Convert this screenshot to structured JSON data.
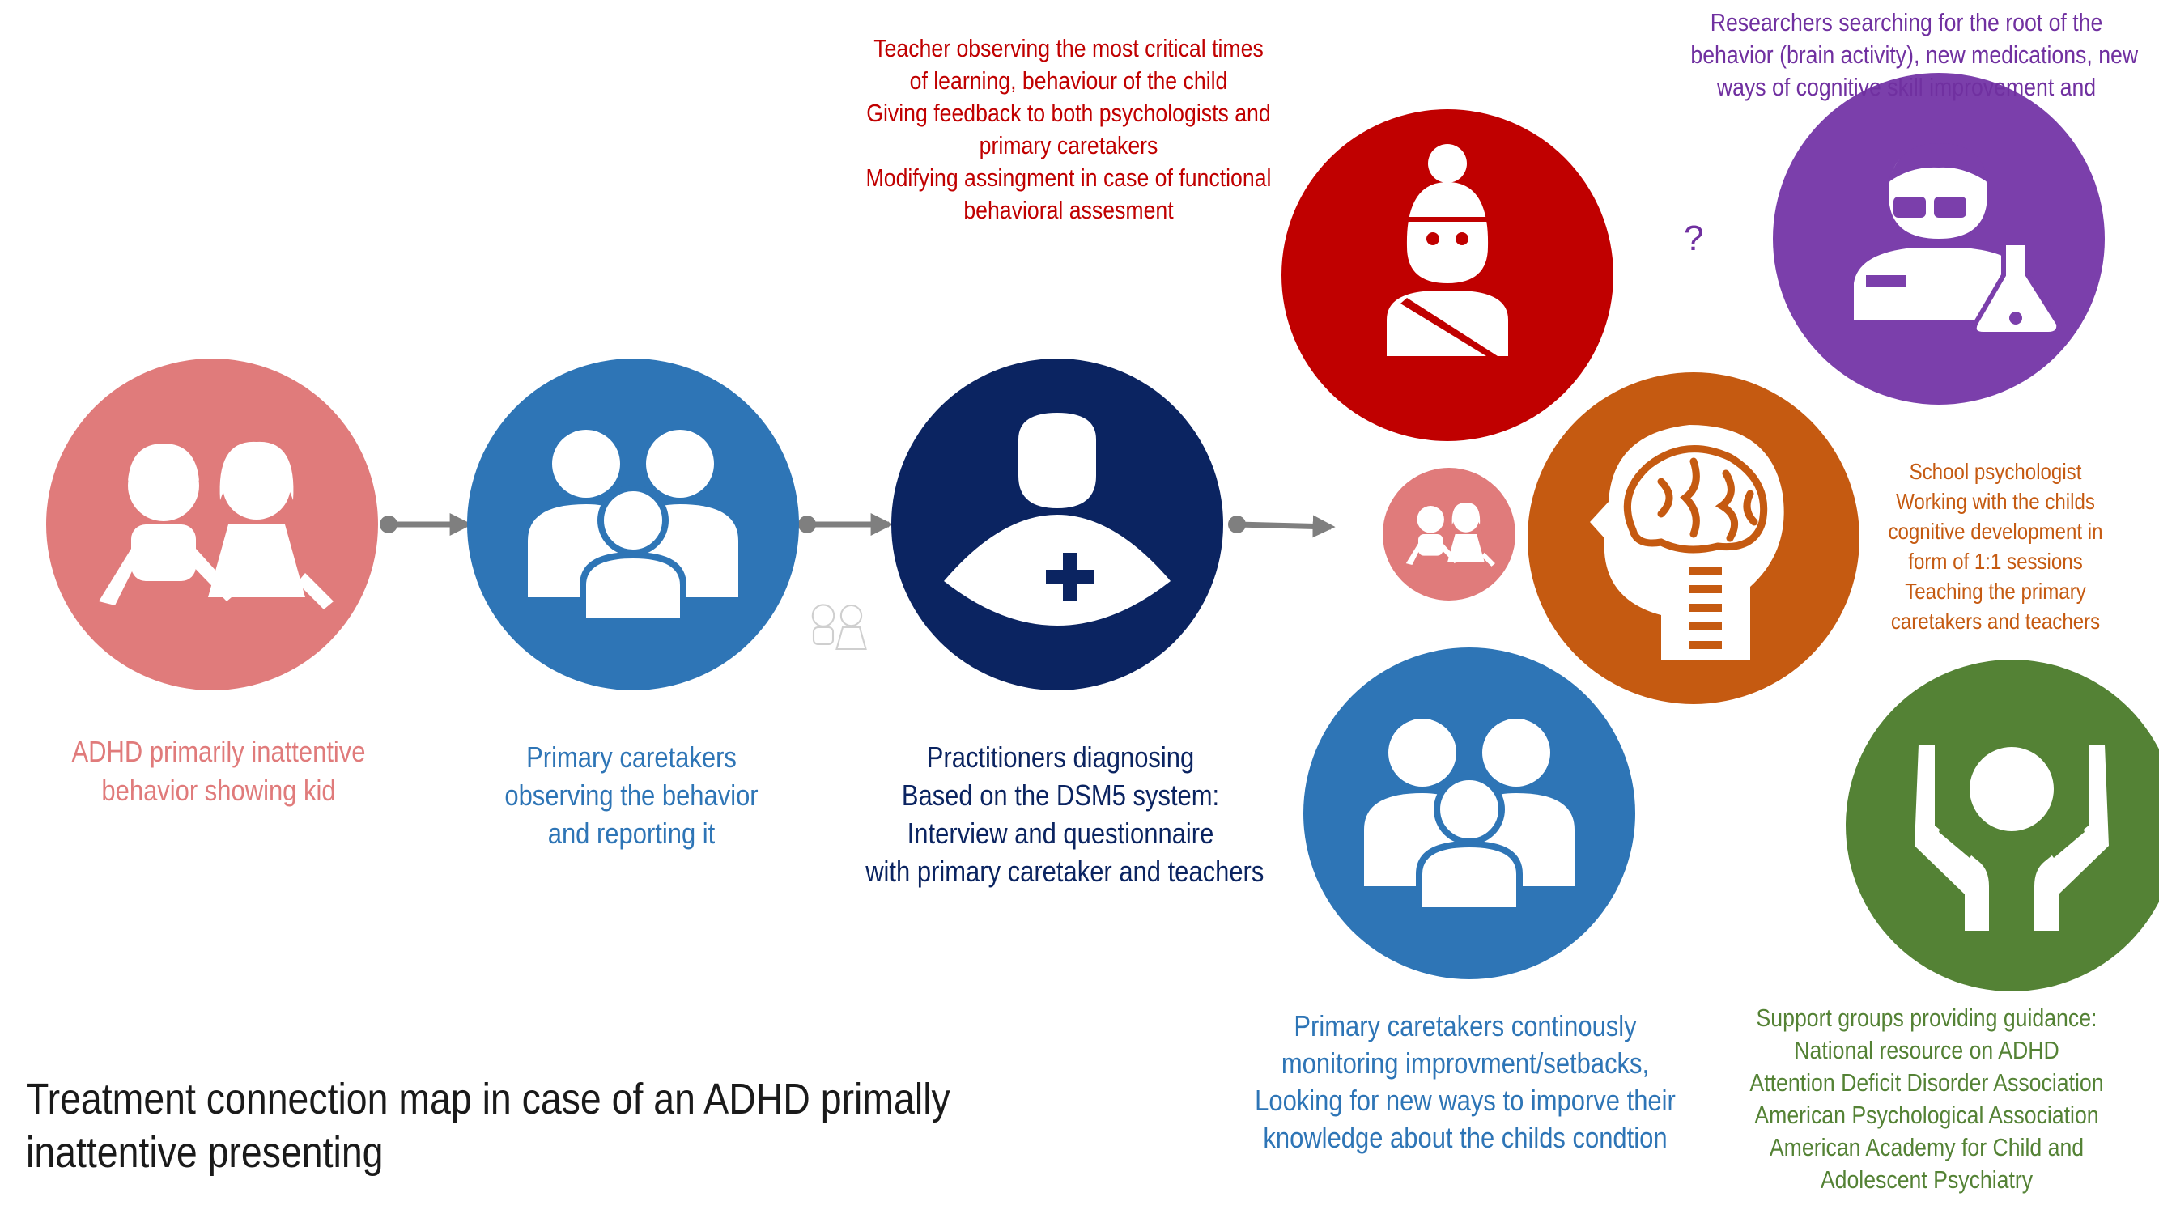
{
  "title": "Treatment connection map in case of an ADHD primally inattentive presenting",
  "question_mark": "?",
  "nodes": {
    "kid": {
      "color": "#e07b7b",
      "icon": "children-icon",
      "lines": [
        "ADHD primarily inattentive",
        "behavior showing kid"
      ]
    },
    "caretakers": {
      "color": "#2e75b6",
      "icon": "family-icon",
      "lines": [
        "Primary caretakers",
        "observing the behavior",
        "and reporting it"
      ]
    },
    "practitioner": {
      "color": "#0b2461",
      "icon": "doctor-icon",
      "lines": [
        "Practitioners diagnosing",
        "Based on the DSM5 system:",
        "Interview and questionnaire",
        "with primary caretaker and teachers"
      ]
    },
    "teacher": {
      "color": "#c00000",
      "icon": "teacher-icon",
      "lines": [
        "Teacher observing the most critical times",
        "of learning, behaviour of the child",
        "Giving feedback to both psychologists and",
        "primary caretakers",
        "Modifying assingment in case of functional",
        "behavioral assesment"
      ]
    },
    "researchers": {
      "color": "#7b3fab",
      "icon": "scientist-icon",
      "lines": [
        "Researchers searching for the root of the",
        "behavior (brain activity), new medications, new",
        "ways of cognitive skill improvement and"
      ]
    },
    "child_small": {
      "color": "#e07b7b",
      "icon": "children-icon"
    },
    "psychologist": {
      "color": "#c55a11",
      "icon": "brain-head-icon",
      "lines": [
        "School psychologist",
        "Working with the childs",
        "cognitive development in",
        "form of  1:1 sessions",
        "Teaching the primary",
        "caretakers and teachers"
      ]
    },
    "caretakers_monitor": {
      "color": "#2e75b6",
      "icon": "family-icon",
      "lines": [
        "Primary caretakers continously",
        "monitoring improvment/setbacks,",
        "Looking for new ways to imporve their",
        "knowledge about the childs condtion"
      ]
    },
    "support": {
      "color": "#548235",
      "icon": "support-hands-icon",
      "lines": [
        "Support groups providing guidance:",
        "National resource on ADHD",
        "Attention Deficit Disorder Association",
        "American Psychological Association",
        "American Academy for Child and",
        "Adolescent Psychiatry"
      ]
    }
  },
  "colors": {
    "connector": "#7f7f7f",
    "arrow": "#ffffff",
    "kid_text": "#e07b7b",
    "caretaker_text": "#2e75b6",
    "practitioner_text": "#0b2461",
    "teacher_text": "#c00000",
    "researcher_text": "#7030a0",
    "psychologist_text": "#c55a11",
    "support_text": "#548235"
  }
}
